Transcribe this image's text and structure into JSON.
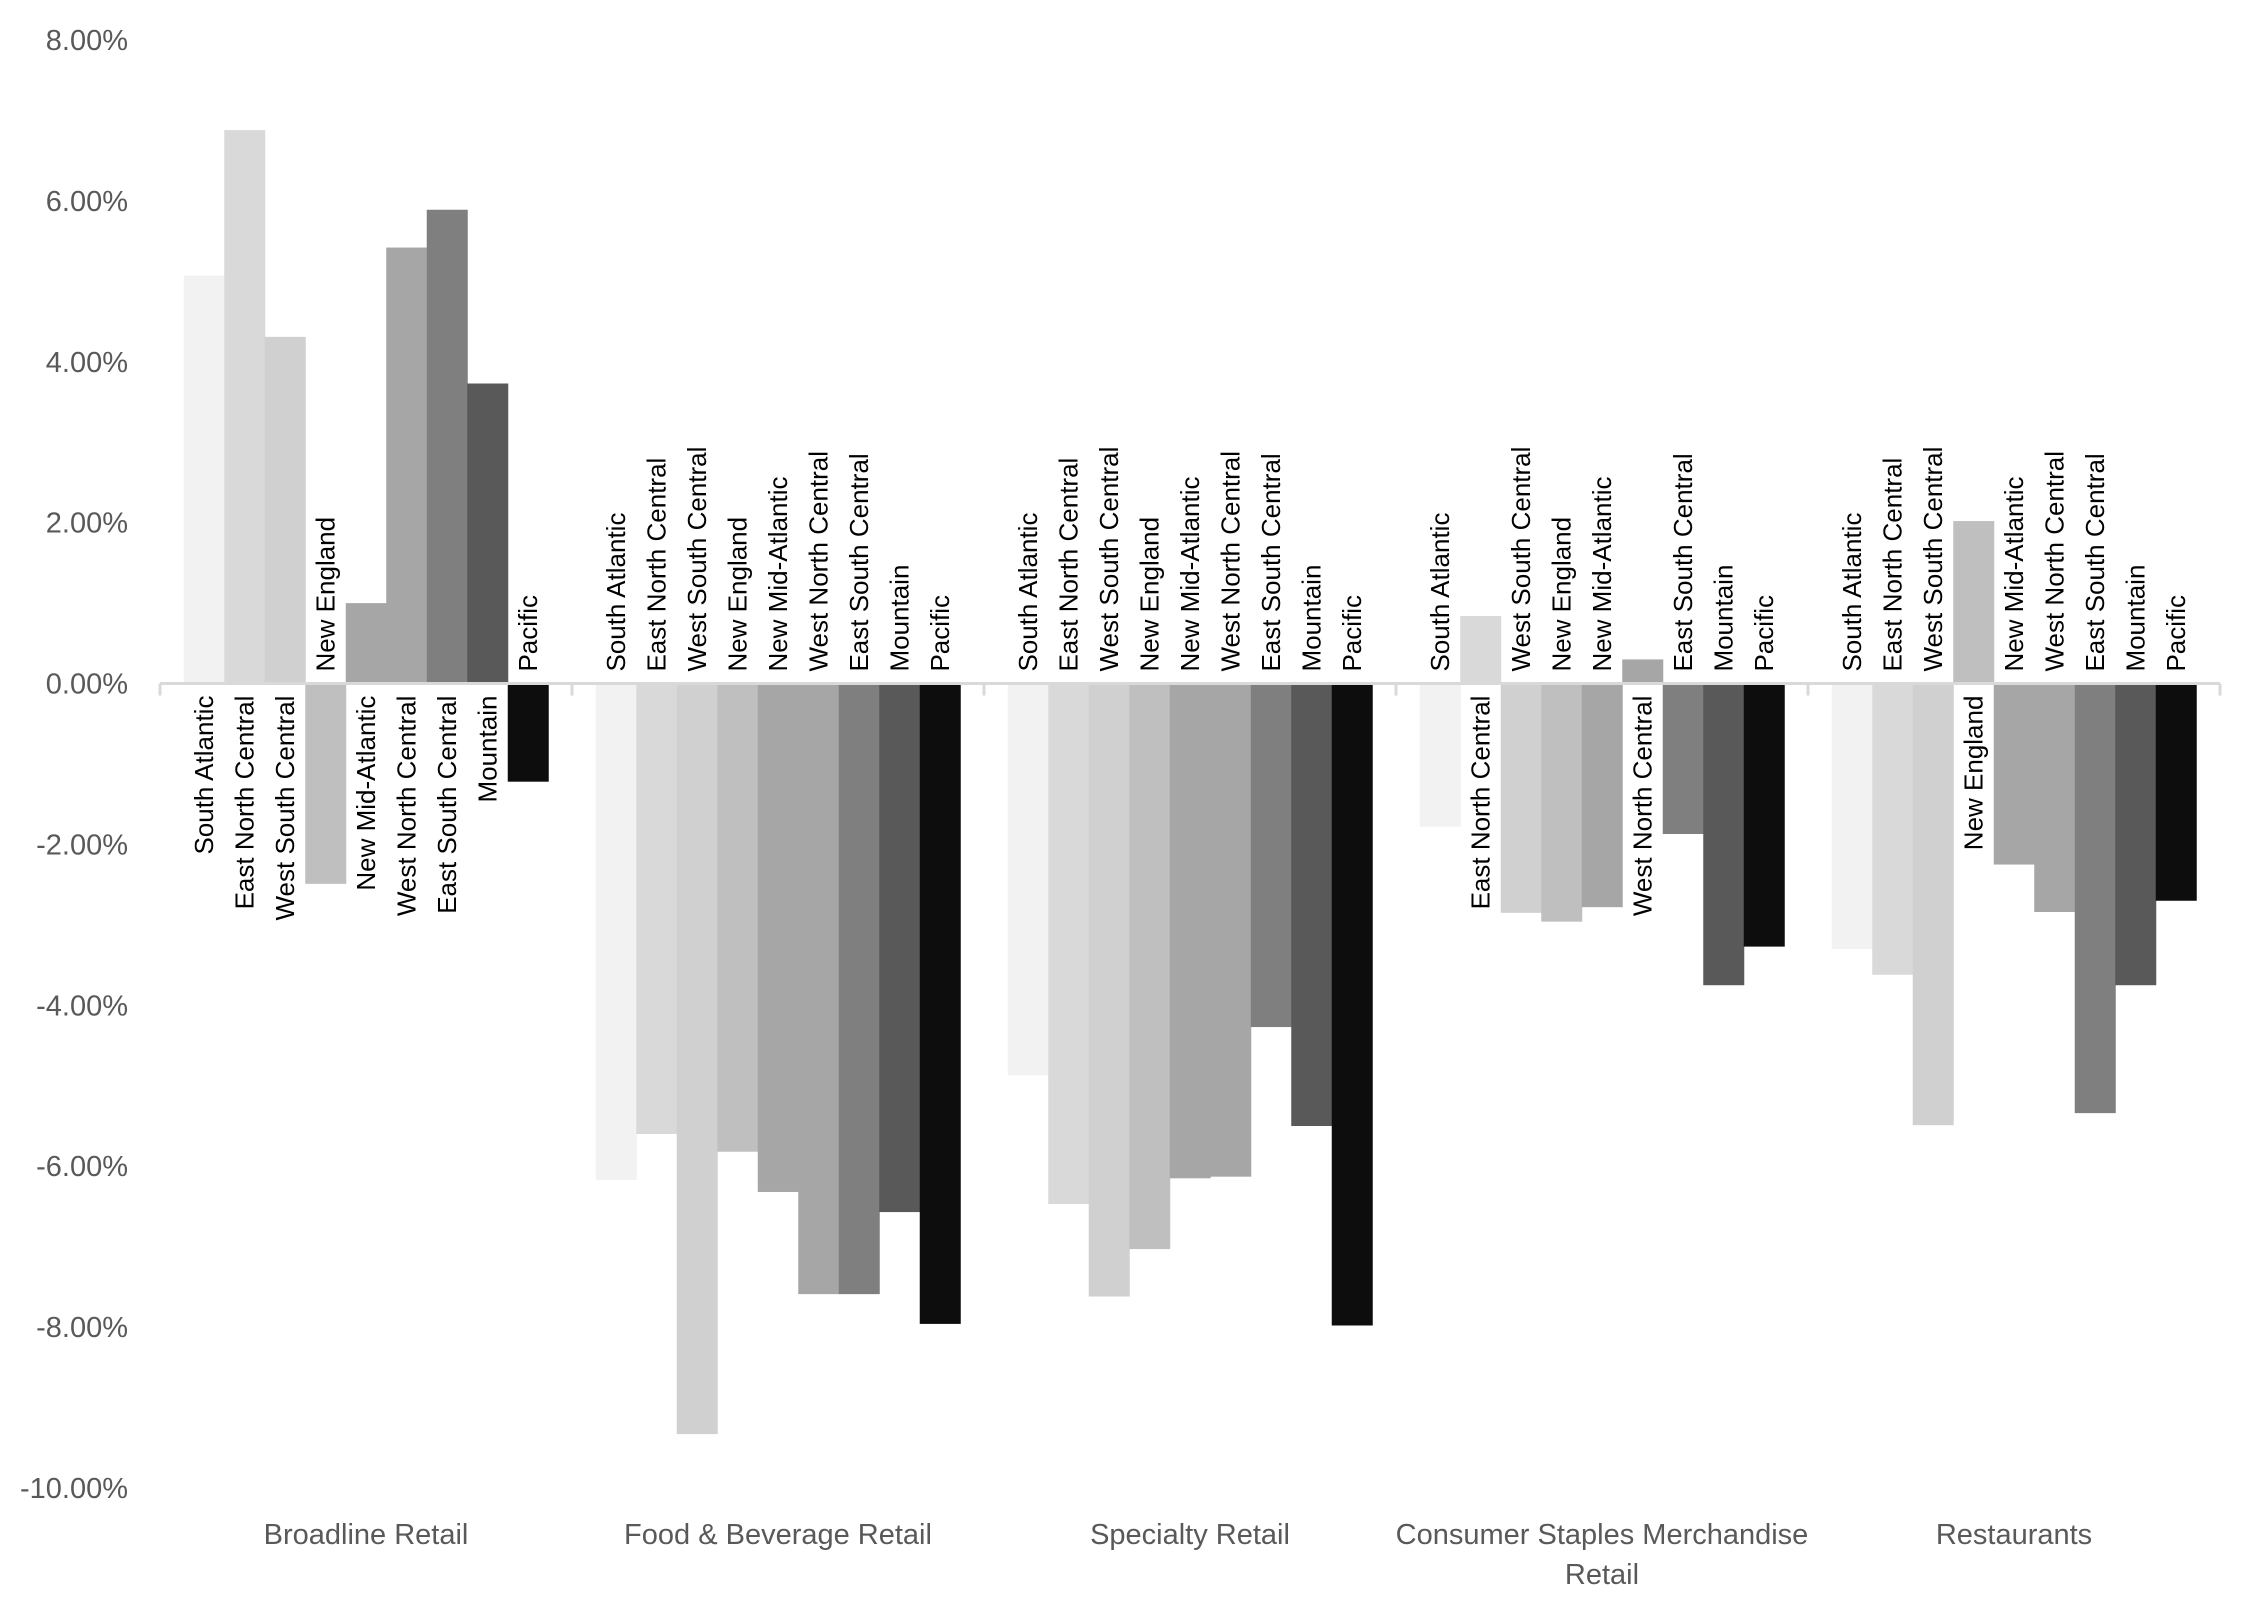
{
  "chart_data": {
    "type": "bar",
    "title": "",
    "xlabel": "",
    "ylabel": "",
    "ylim": [
      -10,
      8
    ],
    "y_ticks": [
      8,
      6,
      4,
      2,
      0,
      -2,
      -4,
      -6,
      -8,
      -10
    ],
    "y_tick_labels": [
      "8.00%",
      "6.00%",
      "4.00%",
      "2.00%",
      "0.00%",
      "-2.00%",
      "-4.00%",
      "-6.00%",
      "-8.00%",
      "-10.00%"
    ],
    "grid": false,
    "legend": "none",
    "categories": [
      "Broadline Retail",
      "Food & Beverage Retail",
      "Specialty Retail",
      "Consumer Staples Merchandise Retail",
      "Restaurants"
    ],
    "category_lines": [
      [
        "Broadline Retail"
      ],
      [
        "Food & Beverage Retail"
      ],
      [
        "Specialty Retail"
      ],
      [
        "Consumer Staples Merchandise",
        "Retail"
      ],
      [
        "Restaurants"
      ]
    ],
    "series": [
      {
        "name": "South Atlantic",
        "color": "#f2f2f2",
        "values": [
          5.07,
          -6.17,
          -4.87,
          -1.78,
          -3.3
        ]
      },
      {
        "name": "East North Central",
        "color": "#d9d9d9",
        "values": [
          6.88,
          -5.6,
          -6.47,
          0.84,
          -3.62
        ]
      },
      {
        "name": "West South Central",
        "color": "#d0d0d0",
        "values": [
          4.31,
          -9.33,
          -7.62,
          -2.85,
          -5.49
        ]
      },
      {
        "name": "New England",
        "color": "#bfbfbf",
        "values": [
          -2.49,
          -5.82,
          -7.03,
          -2.96,
          2.02
        ]
      },
      {
        "name": "New Mid-Atlantic",
        "color": "#a6a6a6",
        "values": [
          1.0,
          -6.32,
          -6.15,
          -2.78,
          -2.25
        ]
      },
      {
        "name": "West North Central",
        "color": "#a6a6a6",
        "values": [
          5.42,
          -7.59,
          -6.13,
          0.3,
          -2.84
        ]
      },
      {
        "name": "East South Central",
        "color": "#7f7f7f",
        "values": [
          5.89,
          -7.59,
          -4.27,
          -1.87,
          -5.34
        ]
      },
      {
        "name": "Mountain",
        "color": "#595959",
        "values": [
          3.73,
          -6.57,
          -5.5,
          -3.75,
          -3.75
        ]
      },
      {
        "name": "Pacific",
        "color": "#0d0d0d",
        "values": [
          -1.22,
          -7.96,
          -7.98,
          -3.27,
          -2.7
        ]
      }
    ]
  }
}
